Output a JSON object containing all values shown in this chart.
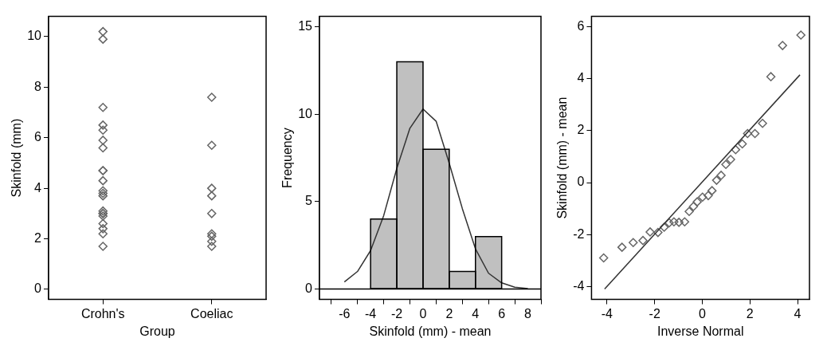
{
  "chart_data": [
    {
      "type": "scatter",
      "xlabel": "Group",
      "ylabel": "Skinfold (mm)",
      "categories": [
        "Crohn's",
        "Coeliac"
      ],
      "ylim": [
        -0.4,
        10.8
      ],
      "yticks": [
        0,
        2,
        4,
        6,
        8,
        10
      ],
      "marker": "diamond",
      "grid": false,
      "series": [
        {
          "color": "#666666",
          "x": [
            "Crohn's",
            "Crohn's",
            "Crohn's",
            "Crohn's",
            "Crohn's",
            "Crohn's",
            "Crohn's",
            "Crohn's",
            "Crohn's",
            "Crohn's",
            "Crohn's",
            "Crohn's",
            "Crohn's",
            "Crohn's",
            "Crohn's",
            "Crohn's",
            "Crohn's",
            "Crohn's",
            "Crohn's",
            "Crohn's",
            "Crohn's",
            "Coeliac",
            "Coeliac",
            "Coeliac",
            "Coeliac",
            "Coeliac",
            "Coeliac",
            "Coeliac",
            "Coeliac",
            "Coeliac"
          ],
          "values": [
            10.2,
            9.9,
            7.2,
            6.5,
            6.3,
            5.9,
            5.6,
            4.7,
            4.7,
            4.3,
            3.9,
            3.8,
            3.7,
            3.1,
            3.0,
            3.0,
            2.9,
            2.6,
            2.4,
            2.2,
            1.7,
            7.6,
            5.7,
            4.0,
            3.7,
            3.0,
            2.2,
            2.1,
            1.9,
            1.7
          ]
        }
      ]
    },
    {
      "type": "histogram",
      "xlabel": "Skinfold (mm) - mean",
      "ylabel": "Frequency",
      "bins": [
        -4,
        -2,
        0,
        2,
        4,
        6
      ],
      "values": [
        4,
        13,
        8,
        1,
        3
      ],
      "color": "#c0c0c0",
      "xlim": [
        -7.9,
        9
      ],
      "xticks": [
        -6,
        -4,
        -2,
        0,
        2,
        4,
        6,
        8
      ],
      "ylim": [
        -0.6,
        15.6
      ],
      "yticks": [
        0,
        5,
        10,
        15
      ],
      "grid": false,
      "ref_lines": [
        {
          "axis": "y",
          "value": 0
        }
      ],
      "series": [
        {
          "type": "line",
          "marker": "none",
          "color": "#333333",
          "x": [
            -6,
            -5,
            -4,
            -3,
            -2,
            -1,
            0,
            1,
            2,
            3,
            4,
            5,
            6,
            7,
            8
          ],
          "values": [
            0.4,
            1.0,
            2.2,
            4.2,
            6.9,
            9.2,
            10.3,
            9.6,
            7.2,
            4.6,
            2.3,
            0.9,
            0.35,
            0.1,
            0.02
          ]
        }
      ]
    },
    {
      "type": "scatter",
      "xlabel": "Inverse Normal",
      "ylabel": "Skinfold (mm) - mean",
      "xlim": [
        -4.65,
        4.5
      ],
      "xticks": [
        -4,
        -2,
        0,
        2,
        4
      ],
      "ylim": [
        -4.5,
        6.4
      ],
      "yticks": [
        -4,
        -2,
        0,
        2,
        4,
        6
      ],
      "marker": "diamond",
      "grid": false,
      "series": [
        {
          "color": "#666666",
          "x": [
            -4.14,
            -3.37,
            -2.9,
            -2.49,
            -2.19,
            -1.86,
            -1.6,
            -1.39,
            -1.19,
            -0.98,
            -0.74,
            -0.55,
            -0.37,
            -0.21,
            0.01,
            0.25,
            0.41,
            0.6,
            0.79,
            0.99,
            1.19,
            1.4,
            1.68,
            1.9,
            2.21,
            2.53,
            2.88,
            3.37,
            4.14
          ],
          "values": [
            -2.9,
            -2.49,
            -2.31,
            -2.23,
            -1.9,
            -1.92,
            -1.72,
            -1.55,
            -1.51,
            -1.53,
            -1.51,
            -1.11,
            -0.92,
            -0.74,
            -0.56,
            -0.5,
            -0.31,
            0.09,
            0.28,
            0.7,
            0.89,
            1.27,
            1.49,
            1.89,
            1.89,
            2.28,
            4.08,
            5.28,
            5.68
          ]
        },
        {
          "type": "line",
          "marker": "none",
          "color": "#333333",
          "x": [
            -4.1,
            4.1
          ],
          "values": [
            -4.1,
            4.15
          ]
        }
      ]
    }
  ]
}
